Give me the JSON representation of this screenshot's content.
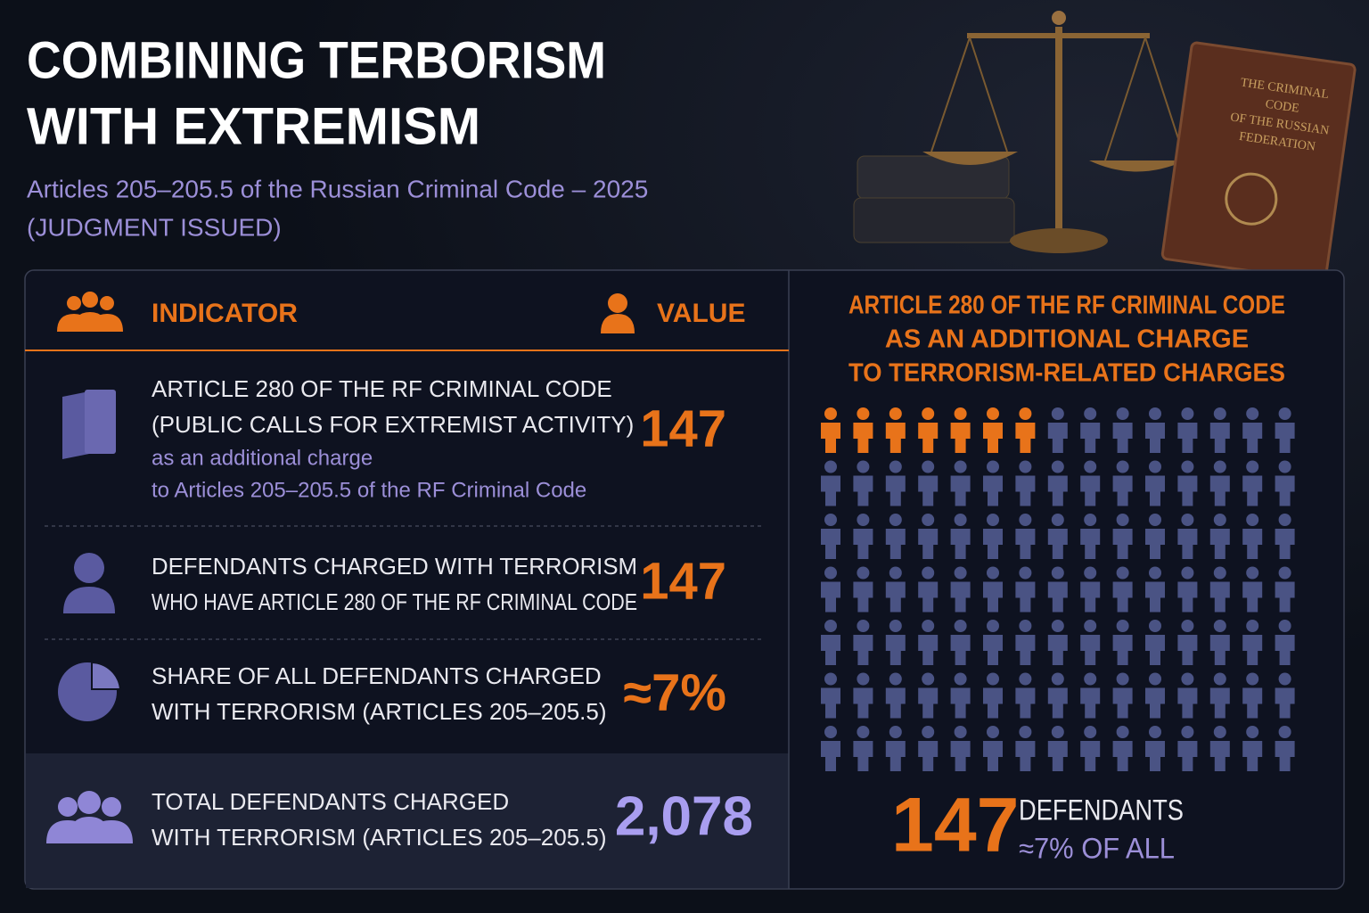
{
  "header": {
    "title": [
      "COMBINING TERBORISM",
      "WITH EXTREMISM"
    ],
    "subtitle": [
      "Articles 205–205.5 of the Russian Criminal Code – 2025",
      "(JUDGMENT ISSUED)"
    ]
  },
  "image": {
    "book_title": [
      "THE CRIMINAL",
      "CODE",
      "OF THE RUSSIAN",
      "FEDERATION"
    ]
  },
  "table": {
    "columns": [
      "INDICATOR",
      "VALUE"
    ],
    "rows": [
      {
        "label": [
          "ARTICLE 280 OF THE RF CRIMINAL CODE",
          "(PUBLIC CALLS FOR EXTREMIST ACTIVITY)"
        ],
        "note": [
          "as an additional charge",
          "to Articles 205–205.5 of the RF Criminal Code"
        ],
        "value": "147"
      },
      {
        "label": [
          "DEFENDANTS CHARGED WITH TERRORISM",
          "WHO HAVE ARTICLE 280 OF THE RF CRIMINAL CODE"
        ],
        "value": "147"
      },
      {
        "label": [
          "SHARE OF ALL DEFENDANTS CHARGED",
          "WITH TERRORISM (ARTICLES 205–205.5)"
        ],
        "value": "≈7%"
      },
      {
        "label": [
          "TOTAL DEFENDANTS CHARGED",
          "WITH TERRORISM (ARTICLES 205–205.5)"
        ],
        "value": "2,078"
      }
    ]
  },
  "pictogram": {
    "title": [
      "ARTICLE 280 OF THE RF CRIMINAL CODE",
      "AS AN ADDITIONAL CHARGE",
      "TO TERRORISM-RELATED CHARGES"
    ],
    "icons_total": 105,
    "icons_highlighted": 7,
    "value": "147",
    "caption": [
      "DEFENDANTS",
      "≈7% OF ALL"
    ]
  }
}
